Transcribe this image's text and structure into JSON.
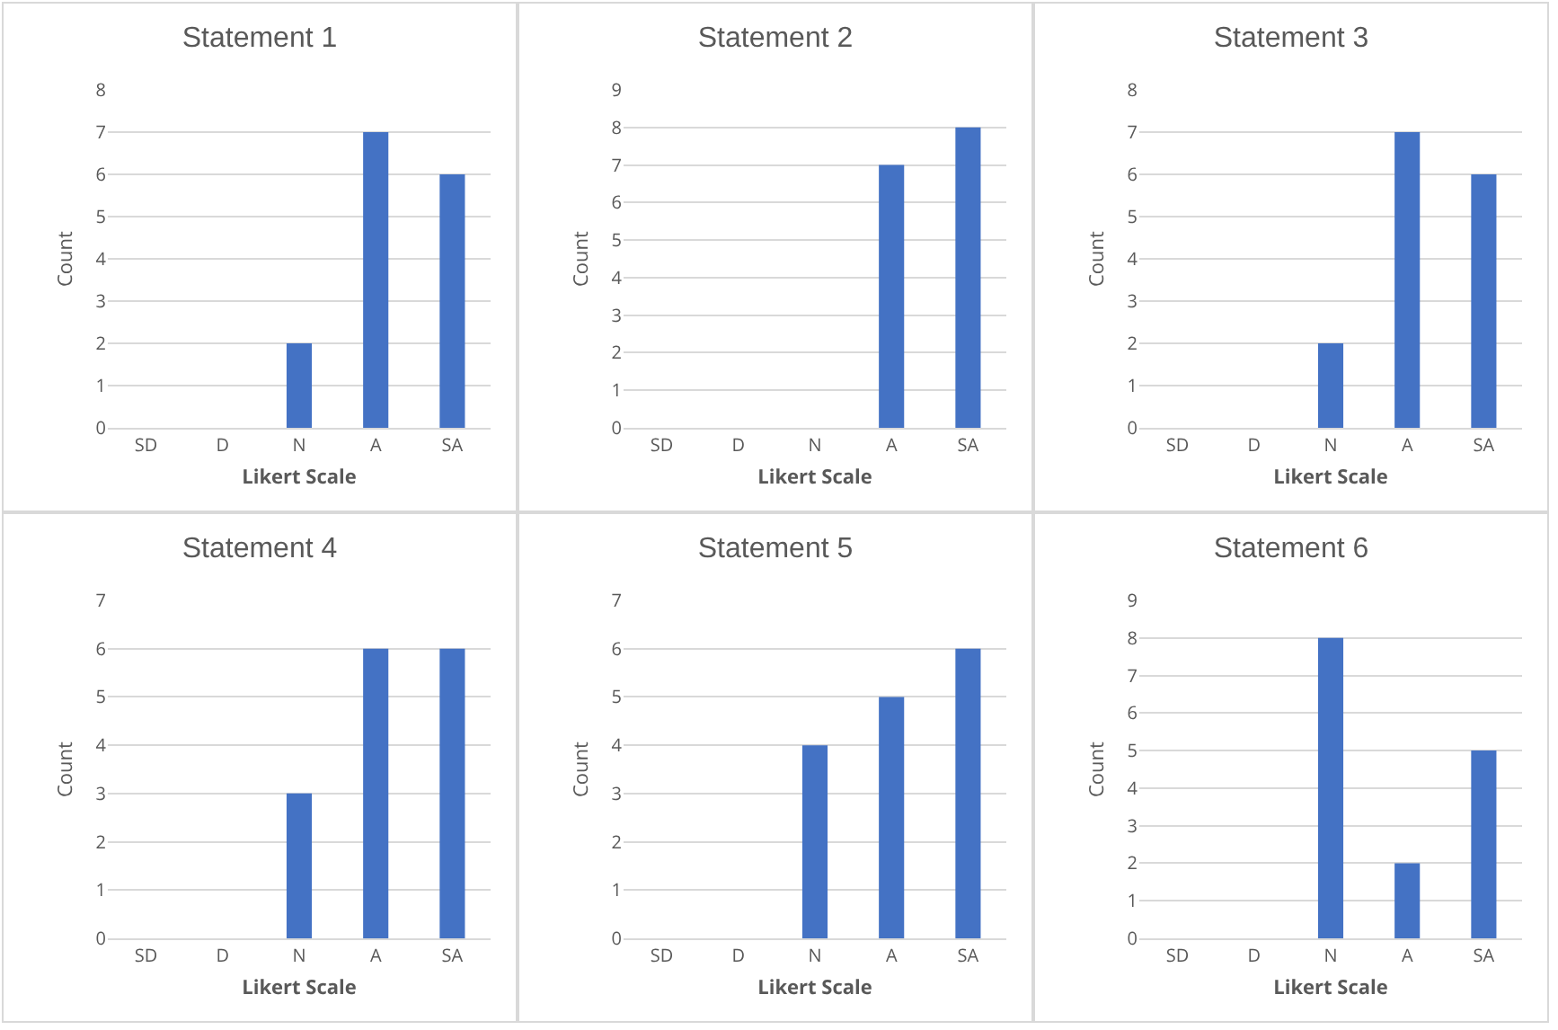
{
  "chart_data": [
    {
      "type": "bar",
      "title": "Statement 1",
      "xlabel": "Likert Scale",
      "ylabel": "Count",
      "categories": [
        "SD",
        "D",
        "N",
        "A",
        "SA"
      ],
      "values": [
        0,
        0,
        2,
        7,
        6
      ],
      "color": "#4472c4",
      "ylim": [
        0,
        8
      ],
      "yticks": [
        0,
        1,
        2,
        3,
        4,
        5,
        6,
        7,
        8
      ],
      "grid": "y",
      "legend": false
    },
    {
      "type": "bar",
      "title": "Statement 2",
      "xlabel": "Likert Scale",
      "ylabel": "Count",
      "categories": [
        "SD",
        "D",
        "N",
        "A",
        "SA"
      ],
      "values": [
        0,
        0,
        0,
        7,
        8
      ],
      "color": "#4472c4",
      "ylim": [
        0,
        9
      ],
      "yticks": [
        0,
        1,
        2,
        3,
        4,
        5,
        6,
        7,
        8,
        9
      ],
      "grid": "y",
      "legend": false
    },
    {
      "type": "bar",
      "title": "Statement 3",
      "xlabel": "Likert Scale",
      "ylabel": "Count",
      "categories": [
        "SD",
        "D",
        "N",
        "A",
        "SA"
      ],
      "values": [
        0,
        0,
        2,
        7,
        6
      ],
      "color": "#4472c4",
      "ylim": [
        0,
        8
      ],
      "yticks": [
        0,
        1,
        2,
        3,
        4,
        5,
        6,
        7,
        8
      ],
      "grid": "y",
      "legend": false
    },
    {
      "type": "bar",
      "title": "Statement 4",
      "xlabel": "Likert Scale",
      "ylabel": "Count",
      "categories": [
        "SD",
        "D",
        "N",
        "A",
        "SA"
      ],
      "values": [
        0,
        0,
        3,
        6,
        6
      ],
      "color": "#4472c4",
      "ylim": [
        0,
        7
      ],
      "yticks": [
        0,
        1,
        2,
        3,
        4,
        5,
        6,
        7
      ],
      "grid": "y",
      "legend": false
    },
    {
      "type": "bar",
      "title": "Statement 5",
      "xlabel": "Likert Scale",
      "ylabel": "Count",
      "categories": [
        "SD",
        "D",
        "N",
        "A",
        "SA"
      ],
      "values": [
        0,
        0,
        4,
        5,
        6
      ],
      "color": "#4472c4",
      "ylim": [
        0,
        7
      ],
      "yticks": [
        0,
        1,
        2,
        3,
        4,
        5,
        6,
        7
      ],
      "grid": "y",
      "legend": false
    },
    {
      "type": "bar",
      "title": "Statement 6",
      "xlabel": "Likert Scale",
      "ylabel": "Count",
      "categories": [
        "SD",
        "D",
        "N",
        "A",
        "SA"
      ],
      "values": [
        0,
        0,
        8,
        2,
        5
      ],
      "color": "#4472c4",
      "ylim": [
        0,
        9
      ],
      "yticks": [
        0,
        1,
        2,
        3,
        4,
        5,
        6,
        7,
        8,
        9
      ],
      "grid": "y",
      "legend": false
    }
  ]
}
